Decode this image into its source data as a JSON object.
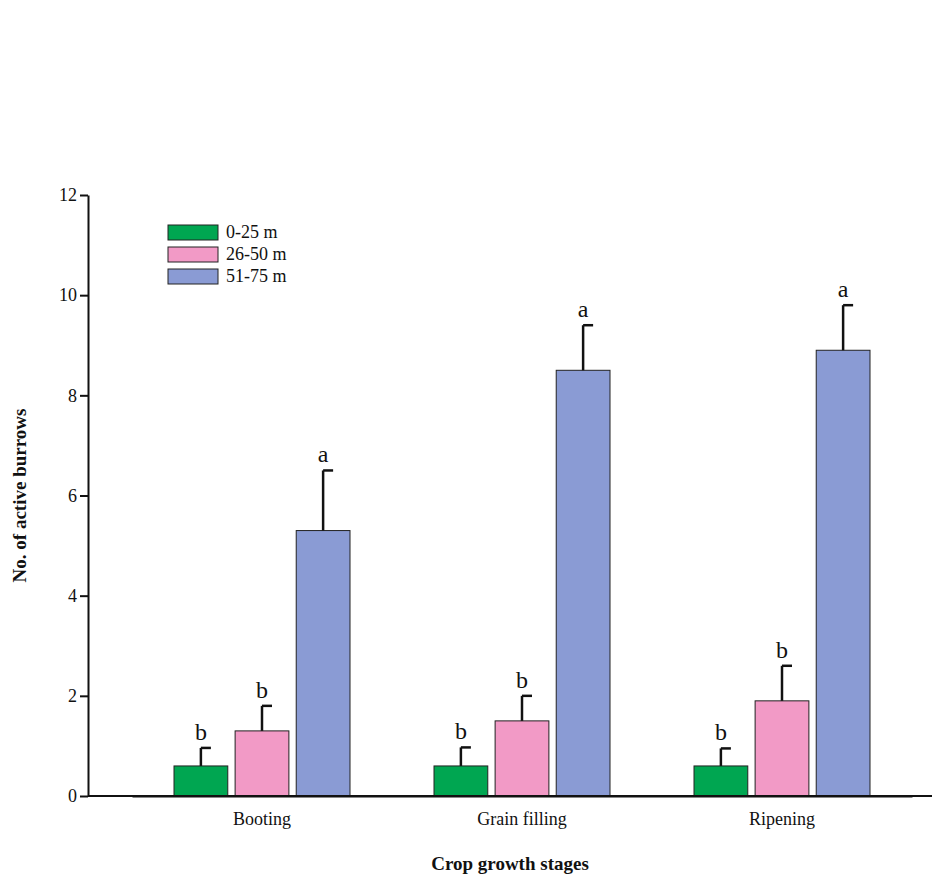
{
  "chart_data": {
    "type": "bar",
    "x_label": "Crop growth stages",
    "y_label": "No. of active burrows",
    "categories": [
      "Booting",
      "Grain filling",
      "Ripening"
    ],
    "series": [
      {
        "name": "0-25 m",
        "color": "#00a651",
        "values": [
          0.6,
          0.6,
          0.6
        ],
        "errors": [
          0.36,
          0.37,
          0.35
        ],
        "annotations": [
          "b",
          "b",
          "b"
        ]
      },
      {
        "name": "26-50 m",
        "color": "#f29ac6",
        "values": [
          1.3,
          1.5,
          1.9
        ],
        "errors": [
          0.5,
          0.5,
          0.7
        ],
        "annotations": [
          "b",
          "b",
          "b"
        ]
      },
      {
        "name": "51-75 m",
        "color": "#8a9bd4",
        "values": [
          5.3,
          8.5,
          8.9
        ],
        "errors": [
          1.2,
          0.9,
          0.9
        ],
        "annotations": [
          "a",
          "a",
          "a"
        ]
      }
    ],
    "ylim": [
      0,
      12
    ],
    "yticks": [
      0,
      2,
      4,
      6,
      8,
      10,
      12
    ],
    "legend": "upper left"
  }
}
